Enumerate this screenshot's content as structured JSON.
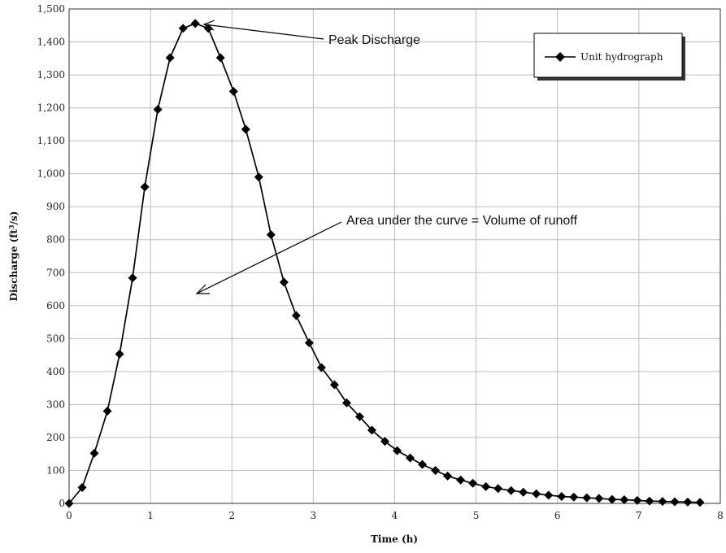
{
  "chart_data": {
    "type": "line",
    "title": "",
    "xlabel": "Time (h)",
    "ylabel_main": "Discharge (ft",
    "ylabel_sup": "3",
    "ylabel_tail": "/s)",
    "xlim": [
      0,
      8
    ],
    "ylim": [
      0,
      1500
    ],
    "x_ticks": [
      "0",
      "1",
      "2",
      "3",
      "4",
      "5",
      "6",
      "7",
      "8"
    ],
    "y_ticks": [
      "0",
      "100",
      "200",
      "300",
      "400",
      "500",
      "600",
      "700",
      "800",
      "900",
      "1,000",
      "1,100",
      "1,200",
      "1,300",
      "1,400",
      "1,500"
    ],
    "grid": true,
    "legend_position": "top-right",
    "series": [
      {
        "name": "Unit hydrograph",
        "color": "#000000",
        "marker": "diamond",
        "x": [
          0,
          0.16,
          0.31,
          0.47,
          0.62,
          0.78,
          0.93,
          1.09,
          1.24,
          1.4,
          1.55,
          1.71,
          1.86,
          2.02,
          2.17,
          2.33,
          2.48,
          2.64,
          2.79,
          2.95,
          3.1,
          3.26,
          3.41,
          3.57,
          3.72,
          3.88,
          4.03,
          4.19,
          4.34,
          4.5,
          4.65,
          4.81,
          4.96,
          5.12,
          5.27,
          5.43,
          5.58,
          5.74,
          5.89,
          6.05,
          6.2,
          6.36,
          6.51,
          6.67,
          6.82,
          6.98,
          7.13,
          7.29,
          7.44,
          7.6,
          7.75
        ],
        "y": [
          0,
          48,
          152,
          280,
          453,
          684,
          960,
          1195,
          1352,
          1441,
          1456,
          1441,
          1352,
          1250,
          1135,
          990,
          815,
          671,
          570,
          487,
          412,
          360,
          305,
          263,
          222,
          188,
          160,
          138,
          118,
          100,
          83,
          71,
          61,
          51,
          45,
          39,
          34,
          29,
          25,
          21,
          19,
          17,
          15,
          12,
          11,
          9,
          7,
          6,
          5,
          4,
          3
        ]
      }
    ],
    "annotations": [
      {
        "text": "Peak Discharge"
      },
      {
        "text": "Area under the curve = Volume of runoff"
      }
    ]
  }
}
